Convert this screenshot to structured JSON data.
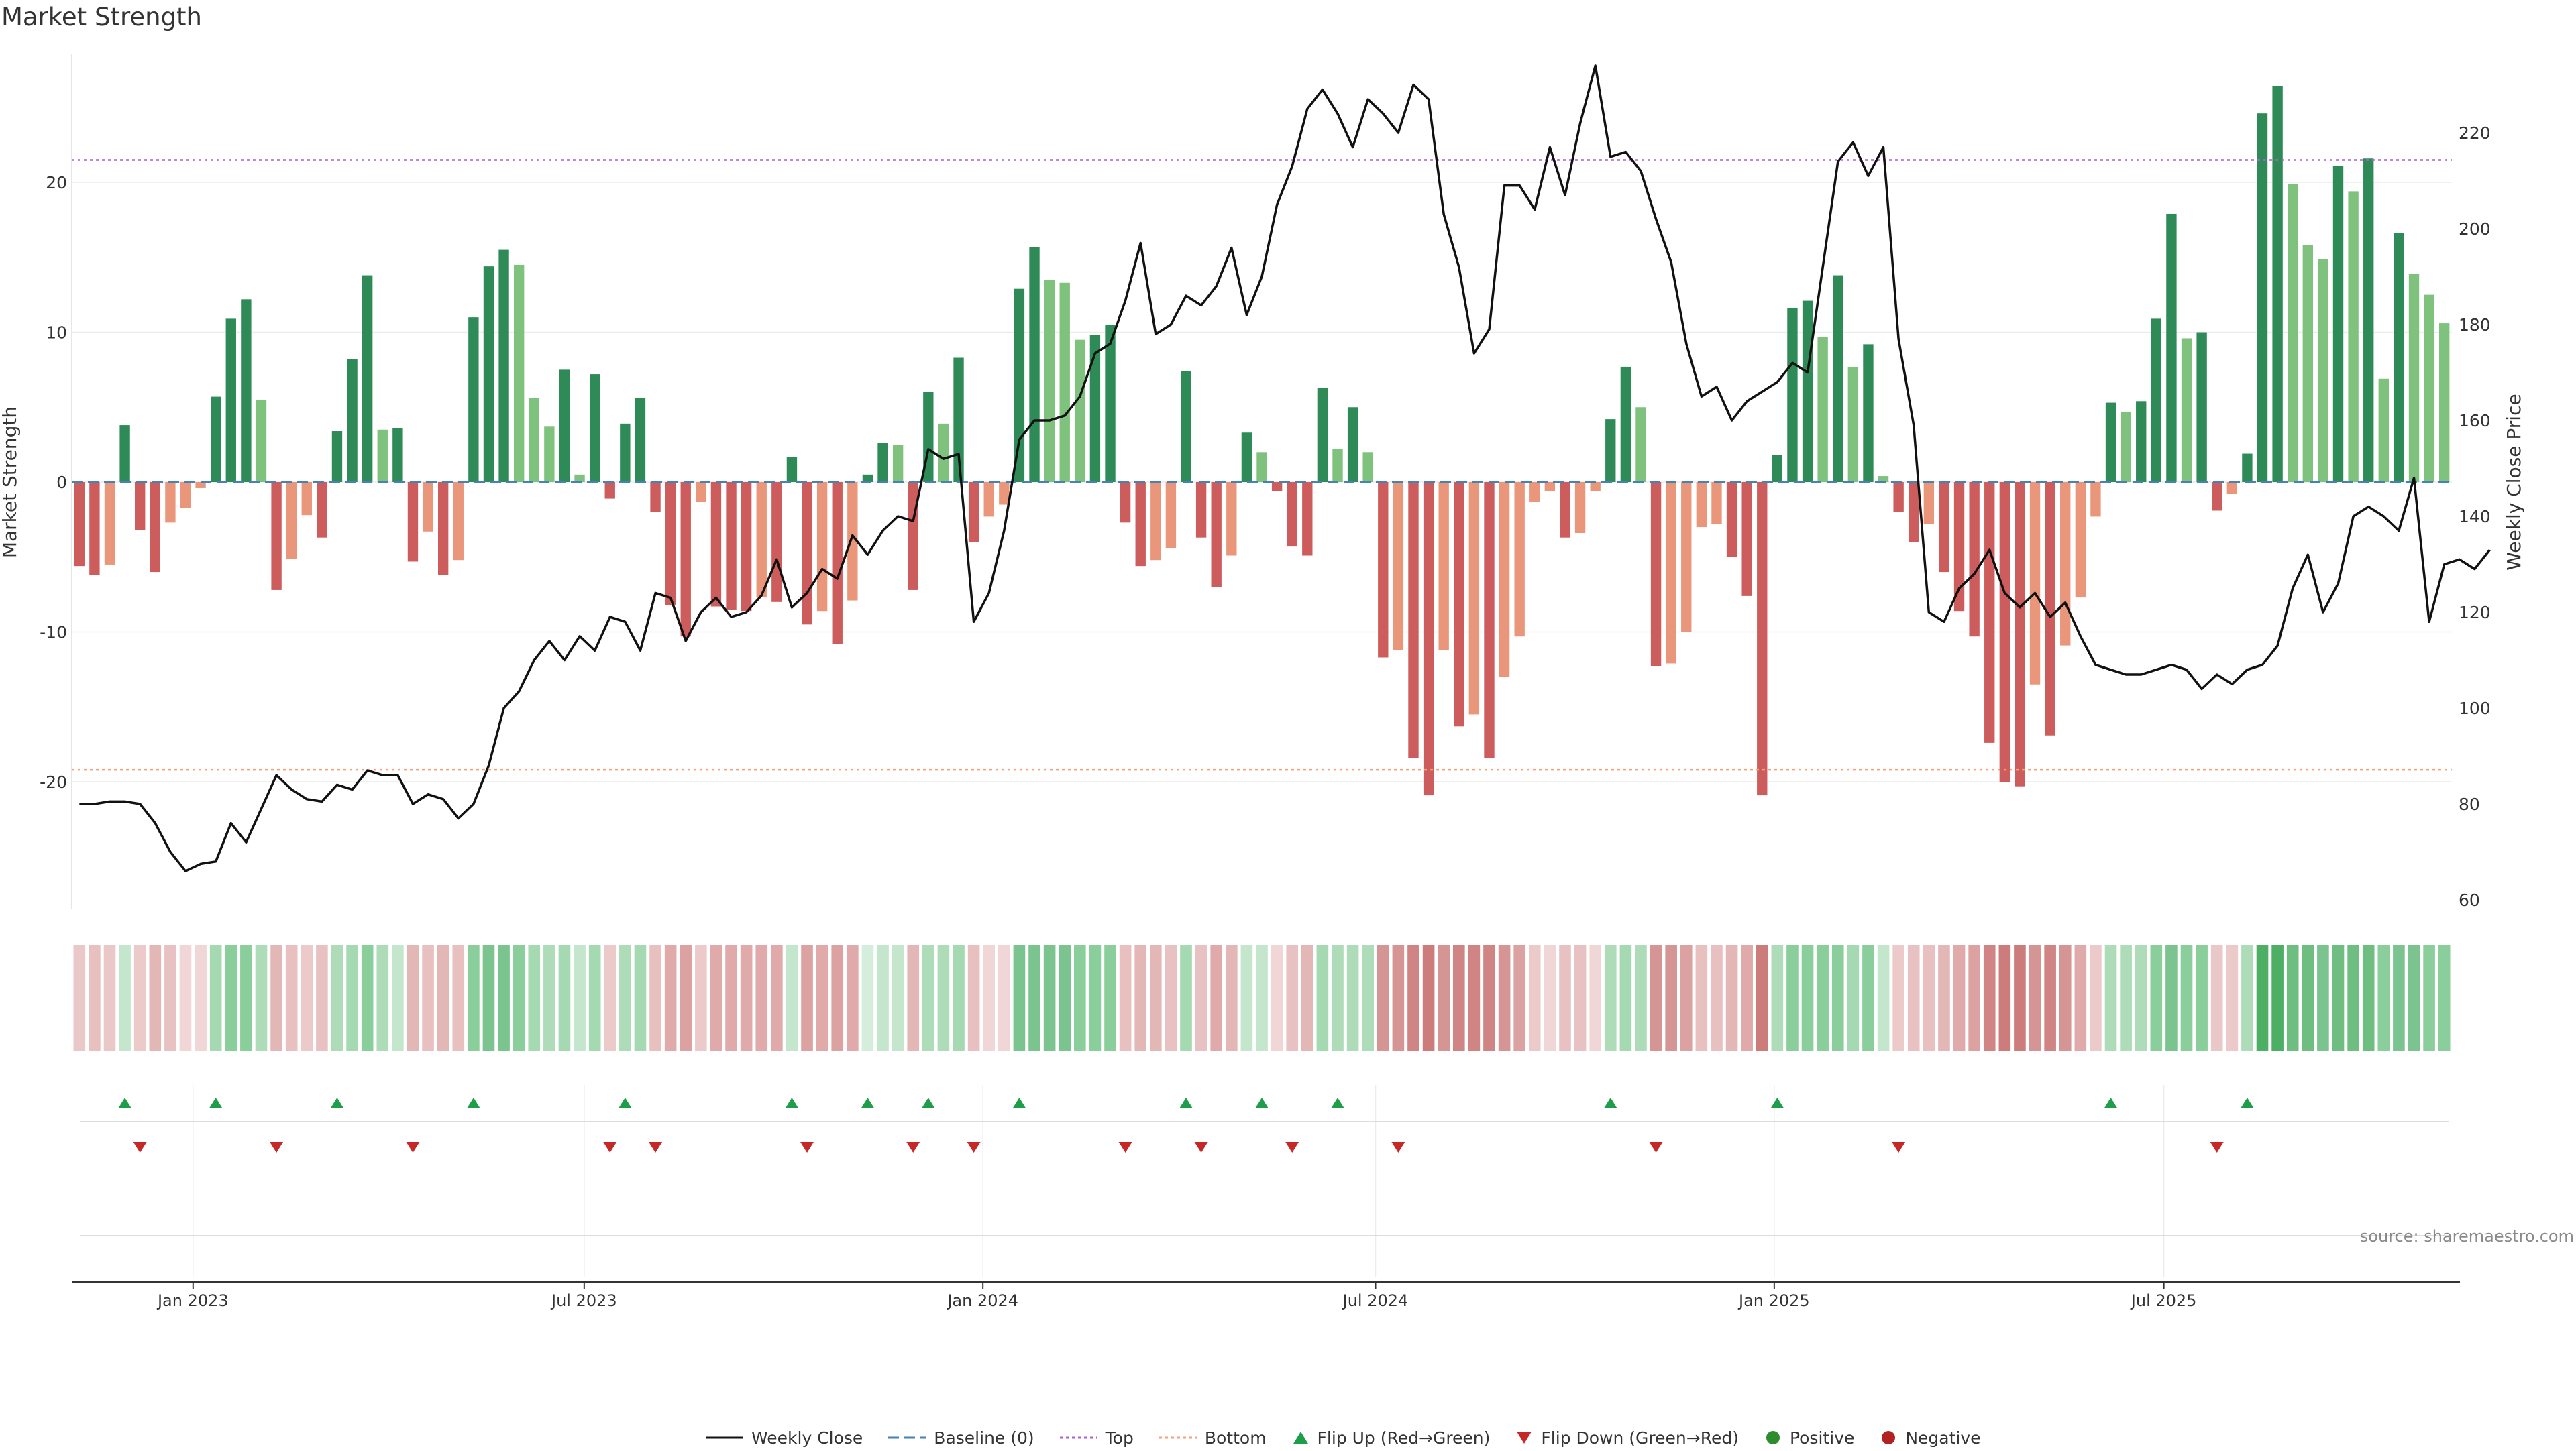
{
  "chart_data": {
    "type": "bar",
    "title": "Market Strength",
    "ylabel_left": "Market Strength",
    "ylabel_right": "Weekly Close Price",
    "ylim_left": [
      -28.5,
      28.5
    ],
    "ylim_right": [
      60,
      228
    ],
    "left_ticks": [
      20,
      10,
      0,
      -10,
      -20
    ],
    "left_tick_labels": [
      "20",
      "10",
      "0",
      "-10",
      "-20"
    ],
    "right_ticks": [
      220,
      200,
      180,
      160,
      140,
      120,
      100,
      80,
      60
    ],
    "right_tick_labels": [
      "220",
      "200",
      "180",
      "160",
      "140",
      "120",
      "100",
      "80",
      "60"
    ],
    "top_line": 21.5,
    "bottom_line": -19.2,
    "x_ticks": [
      {
        "week": 7.5,
        "label": "Jan 2023"
      },
      {
        "week": 33.3,
        "label": "Jul 2023"
      },
      {
        "week": 59.6,
        "label": "Jan 2024"
      },
      {
        "week": 85.5,
        "label": "Jul 2024"
      },
      {
        "week": 111.8,
        "label": "Jan 2025"
      },
      {
        "week": 137.5,
        "label": "Jul 2025"
      }
    ],
    "strength": [
      -5.6,
      -6.2,
      -5.5,
      3.8,
      -3.2,
      -6.0,
      -2.7,
      -1.7,
      -0.4,
      5.7,
      10.9,
      12.2,
      5.5,
      -7.2,
      -5.1,
      -2.2,
      -3.7,
      3.4,
      8.2,
      13.8,
      3.5,
      3.6,
      -5.3,
      -3.3,
      -6.2,
      -5.2,
      11.0,
      14.4,
      15.5,
      14.5,
      5.6,
      3.7,
      7.5,
      0.5,
      7.2,
      -1.1,
      3.9,
      5.6,
      -2.0,
      -8.2,
      -10.3,
      -1.3,
      -8.3,
      -8.5,
      -8.6,
      -7.7,
      -8.0,
      1.7,
      -9.5,
      -8.6,
      -10.8,
      -7.9,
      0.5,
      2.6,
      2.5,
      -7.2,
      6.0,
      3.9,
      8.3,
      -4.0,
      -2.3,
      -1.5,
      12.9,
      15.7,
      13.5,
      13.3,
      9.5,
      9.8,
      10.5,
      -2.7,
      -5.6,
      -5.2,
      -4.4,
      7.4,
      -3.7,
      -7.0,
      -4.9,
      3.3,
      2.0,
      -0.6,
      -4.3,
      -4.9,
      6.3,
      2.2,
      5.0,
      2.0,
      -11.7,
      -11.2,
      -18.4,
      -20.9,
      -11.2,
      -16.3,
      -15.5,
      -18.4,
      -13.0,
      -10.3,
      -1.3,
      -0.6,
      -3.7,
      -3.4,
      -0.6,
      4.2,
      7.7,
      5.0,
      -12.3,
      -12.1,
      -10.0,
      -3.0,
      -2.8,
      -5.0,
      -7.6,
      -20.9,
      1.8,
      11.6,
      12.1,
      9.7,
      13.8,
      7.7,
      9.2,
      0.4,
      -2.0,
      -4.0,
      -2.8,
      -6.0,
      -8.6,
      -10.3,
      -17.4,
      -20.0,
      -20.3,
      -13.5,
      -16.9,
      -10.9,
      -7.7,
      -2.3,
      5.3,
      4.7,
      5.4,
      10.9,
      17.9,
      9.6,
      10.0,
      -1.9,
      -0.8,
      1.9,
      24.6,
      26.4,
      19.9,
      15.8,
      14.9,
      21.1,
      19.4,
      21.6,
      6.9,
      16.6,
      13.9,
      12.5,
      10.6
    ],
    "weekly_close": [
      80,
      80,
      80.5,
      80.5,
      80,
      76,
      70,
      66,
      67.5,
      68,
      76,
      72,
      79,
      86,
      83,
      81,
      80.5,
      84,
      83,
      87,
      86,
      86,
      80,
      82,
      81,
      77,
      80,
      88,
      100,
      103.5,
      110,
      114,
      110,
      115,
      112,
      119,
      118,
      112,
      124,
      123,
      114,
      120,
      123,
      119,
      120,
      123.5,
      131,
      121,
      124,
      129,
      127,
      136,
      132,
      137,
      140,
      139,
      154,
      152,
      153,
      118,
      124,
      137,
      156,
      160,
      160,
      161,
      165,
      174,
      176,
      185,
      197,
      178,
      180,
      186,
      184,
      188,
      196,
      182,
      190,
      205,
      213,
      225,
      229,
      224,
      217,
      227,
      224,
      220,
      230,
      227,
      203,
      192,
      174,
      179,
      209,
      209,
      204,
      217,
      207,
      222,
      234,
      215,
      216,
      212,
      202,
      193,
      176,
      165,
      167,
      160,
      164,
      166,
      168,
      172,
      170,
      192,
      214,
      218,
      211,
      217,
      177,
      159,
      120,
      118,
      125,
      128,
      133,
      124,
      121,
      124,
      119,
      122,
      115,
      109,
      108,
      107,
      107,
      108,
      109,
      108,
      104,
      107,
      105,
      108,
      109,
      113,
      125,
      132,
      120,
      126,
      140,
      142,
      140,
      137,
      148,
      118,
      130,
      131,
      129,
      133
    ]
  },
  "heat_strip": {
    "colors": [
      "#eac8c8",
      "#e9c0c0",
      "#eac8c8",
      "#c3e6cc",
      "#edcaca",
      "#e4b7b7",
      "#e8c2c2",
      "#f0d6d6",
      "#f0d6d6",
      "#a5d9b2",
      "#8acf9b",
      "#8acf9b",
      "#aedcb8",
      "#e4b7b7",
      "#e9c0c0",
      "#edcaca",
      "#e8c2c2",
      "#aedcb8",
      "#a5d9b2",
      "#8acf9b",
      "#aedcb8",
      "#c3e6cc",
      "#e4b7b7",
      "#e9c0c0",
      "#e4b7b7",
      "#e9c0c0",
      "#8acf9b",
      "#7cc48f",
      "#7cc48f",
      "#8acf9b",
      "#a5d9b2",
      "#aedcb8",
      "#a5d9b2",
      "#c3e6cc",
      "#a5d9b2",
      "#edcaca",
      "#aedcb8",
      "#a5d9b2",
      "#e9c0c0",
      "#e0aaaa",
      "#dca2a2",
      "#edcaca",
      "#e0aaaa",
      "#e0aaaa",
      "#e0aaaa",
      "#e0aaaa",
      "#e0aaaa",
      "#c3e6cc",
      "#dca2a2",
      "#e0aaaa",
      "#dca2a2",
      "#e0aaaa",
      "#d5eedc",
      "#c3e6cc",
      "#c3e6cc",
      "#e4b7b7",
      "#aedcb8",
      "#aedcb8",
      "#a5d9b2",
      "#e9c0c0",
      "#f0d6d6",
      "#f0d6d6",
      "#7cc48f",
      "#7cc48f",
      "#7cc48f",
      "#7cc48f",
      "#8acf9b",
      "#8acf9b",
      "#8acf9b",
      "#e9c0c0",
      "#e4b7b7",
      "#e4b7b7",
      "#e8c2c2",
      "#a5d9b2",
      "#e8c2c2",
      "#e0aaaa",
      "#e4b7b7",
      "#c3e6cc",
      "#c3e6cc",
      "#f0d6d6",
      "#e8c2c2",
      "#e4b7b7",
      "#a5d9b2",
      "#aedcb8",
      "#aedcb8",
      "#aedcb8",
      "#d69595",
      "#d69595",
      "#d08484",
      "#cd7c7c",
      "#d69595",
      "#d08484",
      "#d08484",
      "#d08484",
      "#d69595",
      "#dca2a2",
      "#edcaca",
      "#f0d6d6",
      "#e8c2c2",
      "#e8c2c2",
      "#f0d6d6",
      "#aedcb8",
      "#a5d9b2",
      "#aedcb8",
      "#d69595",
      "#d69595",
      "#dca2a2",
      "#e9c0c0",
      "#e9c0c0",
      "#e4b7b7",
      "#e0aaaa",
      "#cd7c7c",
      "#aedcb8",
      "#8acf9b",
      "#8acf9b",
      "#8acf9b",
      "#8acf9b",
      "#a5d9b2",
      "#8acf9b",
      "#c3e6cc",
      "#edcaca",
      "#e8c2c2",
      "#e9c0c0",
      "#e4b7b7",
      "#e0aaaa",
      "#dca2a2",
      "#d08484",
      "#cd7c7c",
      "#cd7c7c",
      "#d69595",
      "#d08484",
      "#d69595",
      "#e0aaaa",
      "#edcaca",
      "#aedcb8",
      "#aedcb8",
      "#aedcb8",
      "#8acf9b",
      "#7cc48f",
      "#8acf9b",
      "#8acf9b",
      "#eac8c8",
      "#edcaca",
      "#aedcb8",
      "#4caf63",
      "#4caf63",
      "#6dbe80",
      "#6dbe80",
      "#7cc48f",
      "#6dbe80",
      "#6dbe80",
      "#6dbe80",
      "#8acf9b",
      "#7cc48f",
      "#7cc48f",
      "#8acf9b",
      "#8acf9b"
    ]
  },
  "flip_up_weeks": [
    3,
    9,
    17,
    26,
    36,
    47,
    52,
    56,
    62,
    73,
    78,
    83,
    101,
    112,
    134,
    143
  ],
  "flip_down_weeks": [
    4,
    13,
    22,
    35,
    38,
    48,
    55,
    59,
    69,
    74,
    80,
    87,
    104,
    120,
    141
  ],
  "source_note": "source: sharemaestro.com",
  "legend": [
    {
      "key": "weekly_close",
      "label": "Weekly Close"
    },
    {
      "key": "baseline",
      "label": "Baseline (0)"
    },
    {
      "key": "top",
      "label": "Top"
    },
    {
      "key": "bottom",
      "label": "Bottom"
    },
    {
      "key": "flip_up",
      "label": "Flip Up (Red→Green)"
    },
    {
      "key": "flip_down",
      "label": "Flip Down (Green→Red)"
    },
    {
      "key": "positive",
      "label": "Positive"
    },
    {
      "key": "negative",
      "label": "Negative"
    }
  ],
  "colors": {
    "bar_green_dark": "#2e8b57",
    "bar_green_light": "#7ec27e",
    "bar_red_dark": "#cd5c5c",
    "bar_red_light": "#e9967a",
    "price_line": "#111111",
    "baseline": "#4682b4",
    "top_line": "#b05fd6",
    "bottom_line": "#f4a07a",
    "flip_up": "#1e9e4a",
    "flip_down": "#c62828",
    "positive": "#2e8b2e",
    "negative": "#b22222"
  }
}
